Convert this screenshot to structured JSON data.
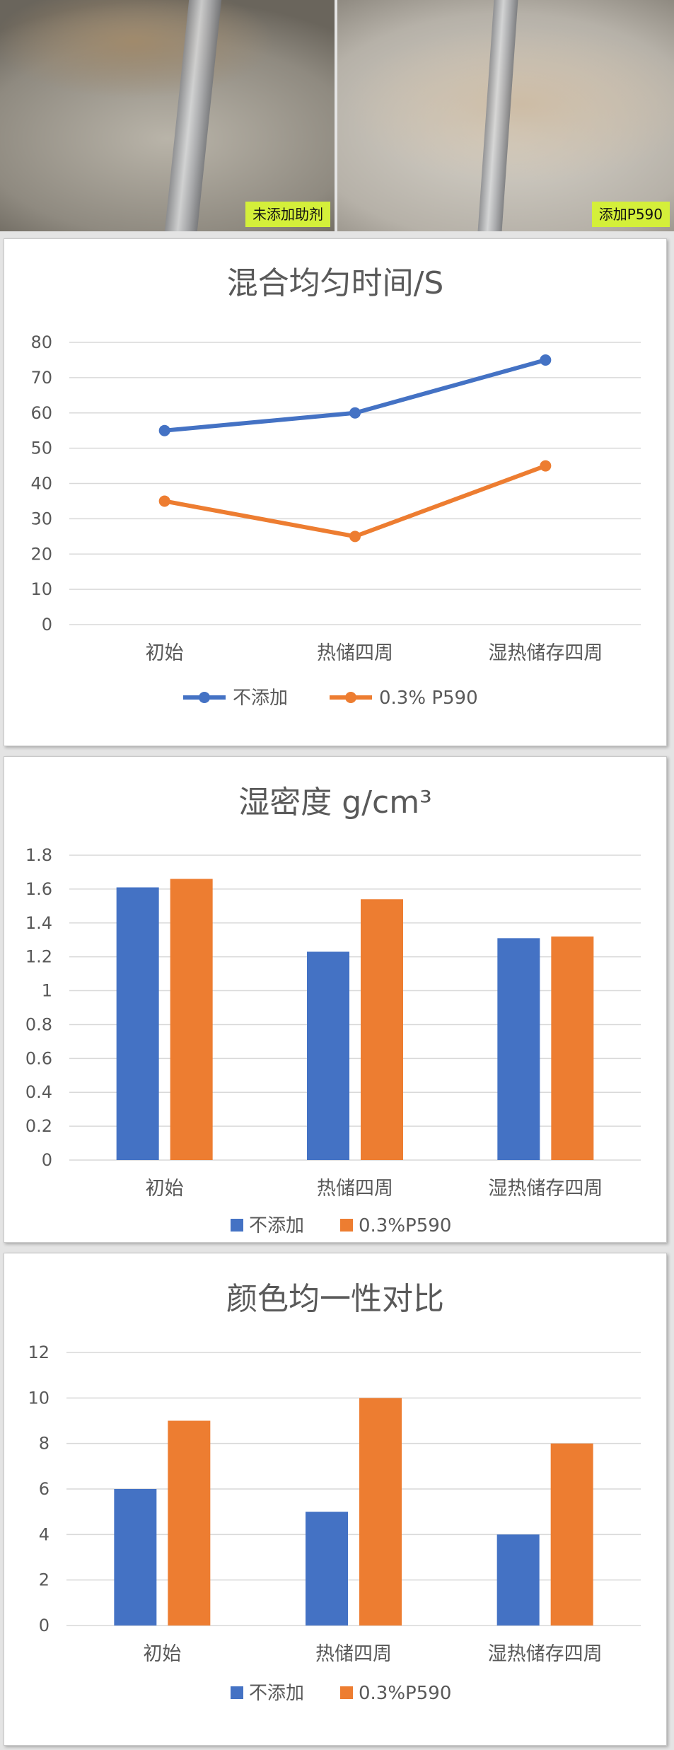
{
  "photos": {
    "left_label": "未添加助剂",
    "right_label": "添加P590"
  },
  "colors": {
    "series_blue": "#4472C4",
    "series_orange": "#ED7D31",
    "grid": "#D9D9D9",
    "text": "#595959",
    "label_bg": "#D4EF3A"
  },
  "chart_data": [
    {
      "type": "line",
      "title": "混合均匀时间/S",
      "categories": [
        "初始",
        "热储四周",
        "湿热储存四周"
      ],
      "series": [
        {
          "name": "不添加",
          "values": [
            55,
            60,
            75
          ]
        },
        {
          "name": "0.3% P590",
          "values": [
            35,
            25,
            45
          ]
        }
      ],
      "ylim": [
        0,
        80
      ],
      "yticks": [
        "0",
        "10",
        "20",
        "30",
        "40",
        "50",
        "60",
        "70",
        "80"
      ],
      "grid": true,
      "legend": "bottom"
    },
    {
      "type": "bar",
      "title": "湿密度 g/cm³",
      "categories": [
        "初始",
        "热储四周",
        "湿热储存四周"
      ],
      "series": [
        {
          "name": "不添加",
          "values": [
            1.61,
            1.23,
            1.31
          ]
        },
        {
          "name": "0.3%P590",
          "values": [
            1.66,
            1.54,
            1.32
          ]
        }
      ],
      "ylim": [
        0,
        1.8
      ],
      "yticks": [
        "0",
        "0.2",
        "0.4",
        "0.6",
        "0.8",
        "1",
        "1.2",
        "1.4",
        "1.6",
        "1.8"
      ],
      "grid": true,
      "legend": "bottom"
    },
    {
      "type": "bar",
      "title": "颜色均一性对比",
      "categories": [
        "初始",
        "热储四周",
        "湿热储存四周"
      ],
      "series": [
        {
          "name": "不添加",
          "values": [
            6,
            5,
            4
          ]
        },
        {
          "name": "0.3%P590",
          "values": [
            9,
            10,
            8
          ]
        }
      ],
      "ylim": [
        0,
        12
      ],
      "yticks": [
        "0",
        "2",
        "4",
        "6",
        "8",
        "10",
        "12"
      ],
      "grid": true,
      "legend": "bottom"
    }
  ]
}
